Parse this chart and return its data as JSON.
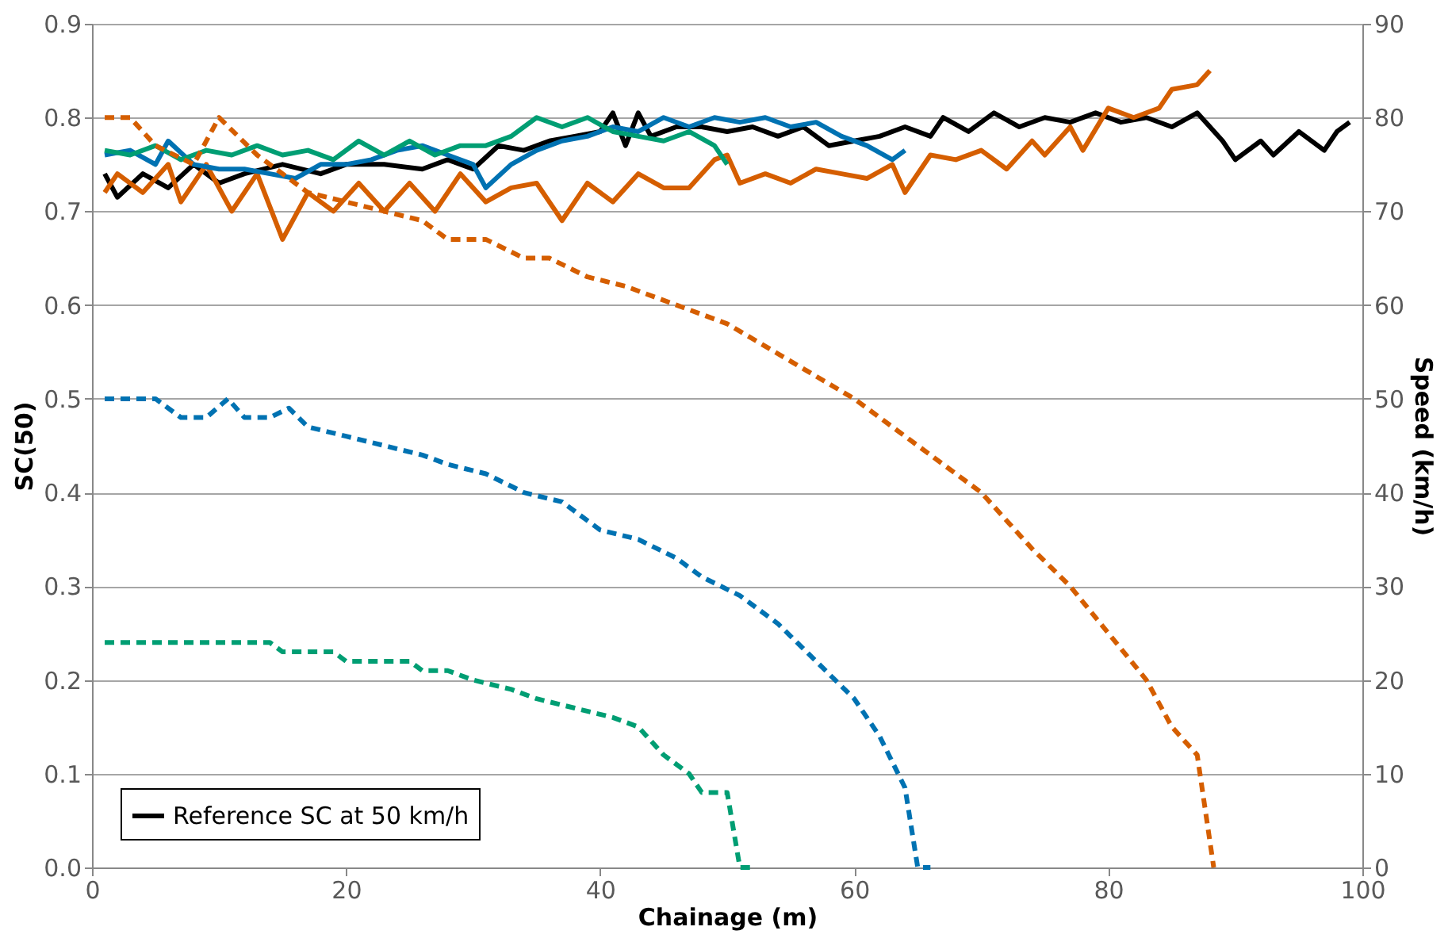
{
  "chart_data": {
    "type": "line",
    "xlabel": "Chainage (m)",
    "ylabel": "SC(50)",
    "y2label": "Speed (km/h)",
    "xlim": [
      0,
      100
    ],
    "xticks": [
      0,
      20,
      40,
      60,
      80,
      100
    ],
    "ylim": [
      0,
      0.9
    ],
    "yticks": [
      {
        "value": 0,
        "label": "0.0"
      },
      0.1,
      0.2,
      0.3,
      0.4,
      0.5,
      0.6,
      0.7,
      0.8,
      0.9
    ],
    "y2lim": [
      0,
      90
    ],
    "y2ticks": [
      0,
      10,
      20,
      30,
      40,
      50,
      60,
      70,
      80,
      90
    ],
    "grid": "y",
    "legend": "bottom left",
    "series": [
      {
        "name": "Reference SC at 50 km/h",
        "color": "#000000",
        "line_style": "solid",
        "x": [
          1,
          2,
          4,
          6,
          8,
          10,
          12,
          15,
          18,
          20,
          23,
          26,
          28,
          30,
          32,
          34,
          36,
          38,
          40,
          41,
          42,
          43,
          44,
          46,
          48,
          50,
          52,
          54,
          56,
          58,
          60,
          62,
          64,
          66,
          67,
          69,
          71,
          73,
          75,
          77,
          79,
          81,
          83,
          85,
          87,
          89,
          90,
          92,
          93,
          95,
          97,
          98,
          99
        ],
        "values": [
          0.74,
          0.715,
          0.74,
          0.725,
          0.75,
          0.73,
          0.74,
          0.75,
          0.74,
          0.75,
          0.75,
          0.745,
          0.755,
          0.745,
          0.77,
          0.765,
          0.775,
          0.78,
          0.785,
          0.805,
          0.77,
          0.805,
          0.78,
          0.79,
          0.79,
          0.785,
          0.79,
          0.78,
          0.79,
          0.77,
          0.775,
          0.78,
          0.79,
          0.78,
          0.8,
          0.785,
          0.805,
          0.79,
          0.8,
          0.795,
          0.805,
          0.795,
          0.8,
          0.79,
          0.805,
          0.775,
          0.755,
          0.775,
          0.76,
          0.785,
          0.765,
          0.785,
          0.795
        ]
      },
      {
        "color": "#d55e00",
        "line_style": "solid",
        "x": [
          1,
          2,
          4,
          6,
          7,
          9,
          11,
          13,
          15,
          17,
          19,
          21,
          23,
          25,
          27,
          29,
          31,
          33,
          35,
          37,
          39,
          41,
          43,
          45,
          47,
          49,
          50,
          51,
          53,
          55,
          57,
          59,
          61,
          63,
          64,
          66,
          68,
          70,
          72,
          74,
          75,
          77,
          78,
          80,
          82,
          84,
          85,
          87,
          88
        ],
        "values": [
          0.72,
          0.74,
          0.72,
          0.75,
          0.71,
          0.75,
          0.7,
          0.74,
          0.67,
          0.72,
          0.7,
          0.73,
          0.7,
          0.73,
          0.7,
          0.74,
          0.71,
          0.725,
          0.73,
          0.69,
          0.73,
          0.71,
          0.74,
          0.725,
          0.725,
          0.755,
          0.76,
          0.73,
          0.74,
          0.73,
          0.745,
          0.74,
          0.735,
          0.75,
          0.72,
          0.76,
          0.755,
          0.765,
          0.745,
          0.775,
          0.76,
          0.79,
          0.765,
          0.81,
          0.8,
          0.81,
          0.83,
          0.835,
          0.85
        ]
      },
      {
        "color": "#0072b2",
        "line_style": "solid",
        "x": [
          1,
          3,
          5,
          6,
          8,
          10,
          12,
          14,
          16,
          18,
          20,
          22,
          24,
          26,
          28,
          30,
          31,
          33,
          35,
          37,
          39,
          41,
          43,
          45,
          47,
          49,
          51,
          53,
          55,
          57,
          59,
          61,
          63,
          64
        ],
        "values": [
          0.76,
          0.765,
          0.75,
          0.775,
          0.75,
          0.745,
          0.745,
          0.74,
          0.735,
          0.75,
          0.75,
          0.755,
          0.765,
          0.77,
          0.76,
          0.75,
          0.725,
          0.75,
          0.765,
          0.775,
          0.78,
          0.79,
          0.785,
          0.8,
          0.79,
          0.8,
          0.795,
          0.8,
          0.79,
          0.795,
          0.78,
          0.77,
          0.755,
          0.765
        ]
      },
      {
        "color": "#009e73",
        "line_style": "solid",
        "x": [
          1,
          3,
          5,
          7,
          9,
          11,
          13,
          15,
          17,
          19,
          21,
          23,
          25,
          27,
          29,
          31,
          33,
          35,
          37,
          39,
          41,
          43,
          45,
          47,
          49,
          50
        ],
        "values": [
          0.765,
          0.76,
          0.77,
          0.755,
          0.765,
          0.76,
          0.77,
          0.76,
          0.765,
          0.755,
          0.775,
          0.76,
          0.775,
          0.76,
          0.77,
          0.77,
          0.78,
          0.8,
          0.79,
          0.8,
          0.785,
          0.78,
          0.775,
          0.785,
          0.77,
          0.75
        ]
      },
      {
        "color": "#d55e00",
        "line_style": "dashed",
        "axis": "y2",
        "x": [
          1,
          3,
          5,
          8,
          10,
          13,
          17,
          20,
          23,
          26,
          28,
          31,
          34,
          36,
          39,
          42,
          46,
          50,
          55,
          60,
          65,
          70,
          74,
          77,
          80,
          83,
          85,
          87,
          88.3
        ],
        "values": [
          80,
          80,
          77,
          75,
          80,
          76,
          72,
          71,
          70,
          69,
          67,
          67,
          65,
          65,
          63,
          62,
          60,
          58,
          54,
          50,
          45,
          40,
          34,
          30,
          25,
          20,
          15,
          12,
          0
        ]
      },
      {
        "color": "#0072b2",
        "line_style": "dashed",
        "axis": "y2",
        "x": [
          1,
          5,
          7,
          9,
          10.7,
          12,
          14,
          15.5,
          17,
          20,
          23,
          26,
          28,
          31,
          34,
          37,
          40,
          43,
          46,
          48,
          51,
          54,
          57,
          60,
          62,
          64,
          65,
          66
        ],
        "values": [
          50,
          50,
          48,
          48,
          50,
          48,
          48,
          49,
          47,
          46,
          45,
          44,
          43,
          42,
          40,
          39,
          36,
          35,
          33,
          31,
          29,
          26,
          22,
          18,
          14,
          8.5,
          0,
          0
        ]
      },
      {
        "color": "#009e73",
        "line_style": "dashed",
        "axis": "y2",
        "x": [
          1,
          14,
          15,
          19,
          20,
          25,
          26,
          28,
          30,
          33,
          35,
          38,
          41,
          43,
          45,
          47,
          48,
          50,
          51,
          52
        ],
        "values": [
          24,
          24,
          23,
          23,
          22,
          22,
          21,
          21,
          20,
          19,
          18,
          17,
          16,
          15,
          12,
          10,
          8,
          8,
          0,
          0
        ]
      }
    ]
  }
}
